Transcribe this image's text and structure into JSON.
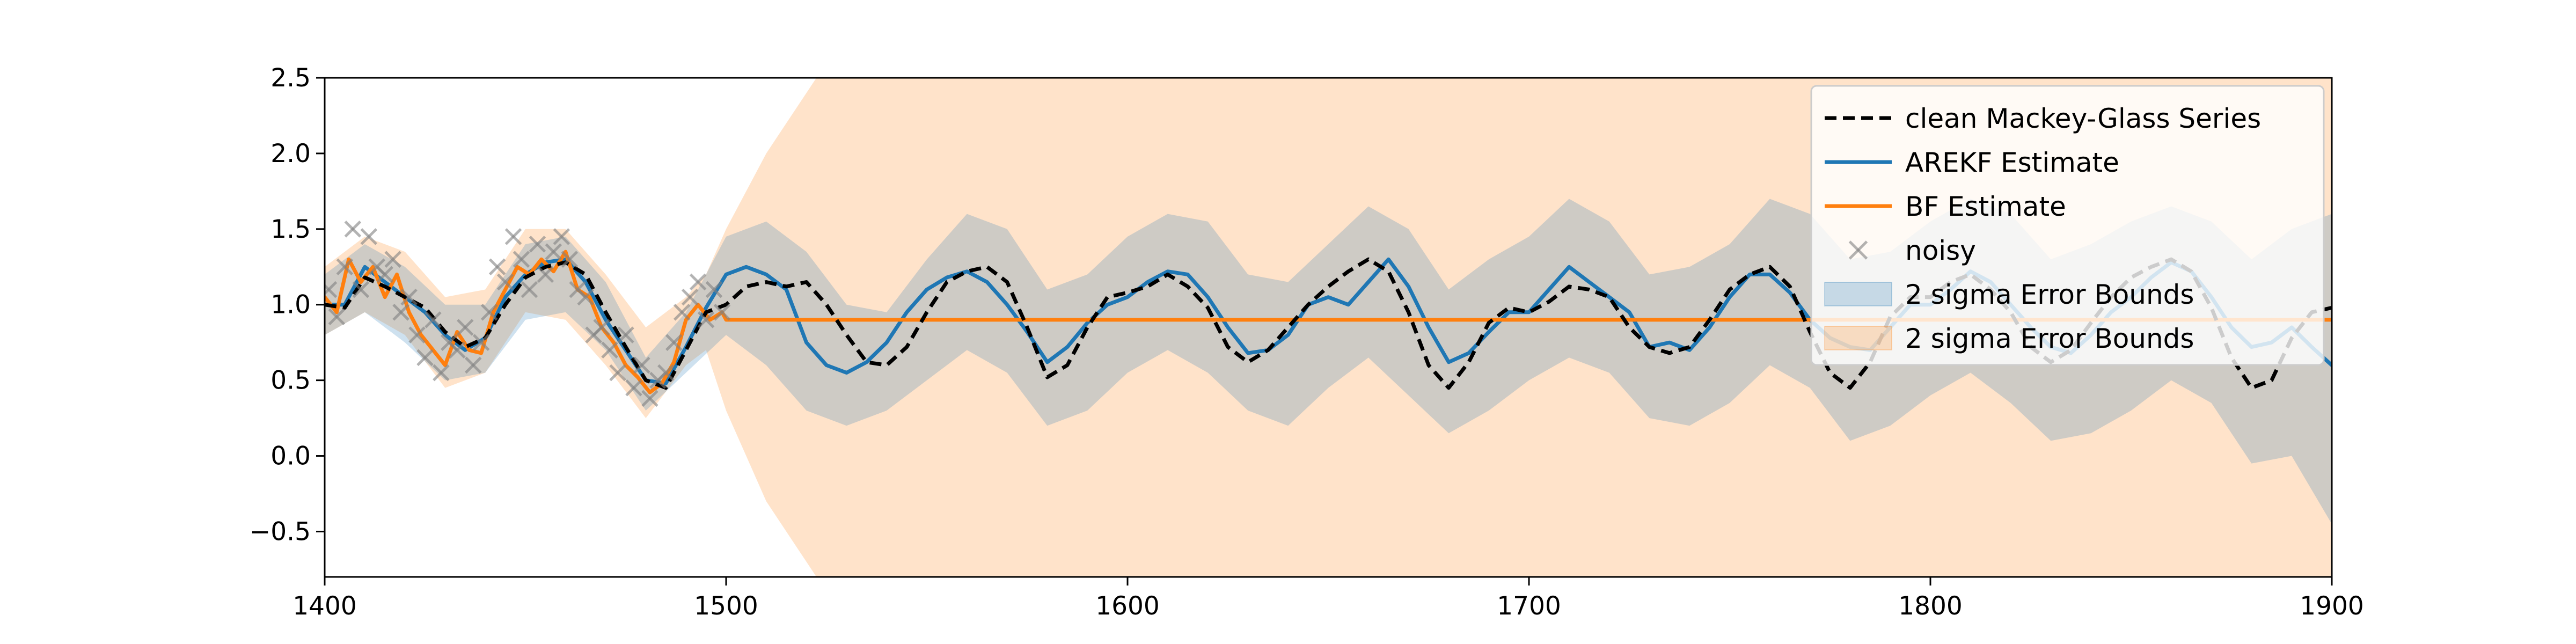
{
  "chart_data": {
    "type": "line",
    "title": "",
    "xlabel": "",
    "ylabel": "",
    "xlim": [
      1400,
      1900
    ],
    "ylim": [
      -0.8,
      2.5
    ],
    "x_ticks": [
      1400,
      1500,
      1600,
      1700,
      1800,
      1900
    ],
    "y_ticks": [
      2.5,
      2.0,
      1.5,
      1.0,
      0.5,
      0.0,
      -0.5
    ],
    "x_tick_labels": [
      "1400",
      "1500",
      "1600",
      "1700",
      "1800",
      "1900"
    ],
    "y_tick_labels": [
      "2.5",
      "2.0",
      "1.5",
      "1.0",
      "0.5",
      "0.0",
      "−0.5"
    ],
    "grid": false,
    "legend_position": "top-right",
    "colors": {
      "clean": "#000000",
      "arekf": "#1f77b4",
      "bf": "#ff7f0e",
      "noisy": "#808080",
      "arekf_band": "#1f77b4",
      "bf_band": "#ff7f0e"
    },
    "legend": [
      {
        "key": "clean",
        "label": "clean Mackey-Glass Series"
      },
      {
        "key": "arekf",
        "label": "AREKF Estimate"
      },
      {
        "key": "bf",
        "label": "BF Estimate"
      },
      {
        "key": "noisy",
        "label": "noisy"
      },
      {
        "key": "arekf_band",
        "label": "2 sigma Error Bounds"
      },
      {
        "key": "bf_band",
        "label": "2 sigma Error Bounds"
      }
    ],
    "series": [
      {
        "key": "clean",
        "style": "dashed",
        "x": [
          1400,
          1405,
          1410,
          1415,
          1420,
          1425,
          1430,
          1435,
          1440,
          1445,
          1450,
          1455,
          1460,
          1465,
          1470,
          1475,
          1480,
          1485,
          1490,
          1495,
          1500,
          1505,
          1510,
          1515,
          1520,
          1525,
          1530,
          1535,
          1540,
          1545,
          1550,
          1555,
          1560,
          1565,
          1570,
          1575,
          1580,
          1585,
          1590,
          1595,
          1600,
          1605,
          1610,
          1615,
          1620,
          1625,
          1630,
          1635,
          1640,
          1645,
          1650,
          1655,
          1660,
          1665,
          1670,
          1675,
          1680,
          1685,
          1690,
          1695,
          1700,
          1705,
          1710,
          1715,
          1720,
          1725,
          1730,
          1735,
          1740,
          1745,
          1750,
          1755,
          1760,
          1765,
          1770,
          1775,
          1780,
          1785,
          1790,
          1795,
          1800,
          1805,
          1810,
          1815,
          1820,
          1825,
          1830,
          1835,
          1840,
          1845,
          1850,
          1855,
          1860,
          1865,
          1870,
          1875,
          1880,
          1885,
          1890,
          1895,
          1900
        ],
        "y": [
          1.0,
          0.98,
          1.18,
          1.12,
          1.05,
          0.98,
          0.82,
          0.72,
          0.78,
          1.0,
          1.18,
          1.25,
          1.28,
          1.2,
          0.95,
          0.72,
          0.5,
          0.45,
          0.7,
          0.95,
          1.0,
          1.12,
          1.15,
          1.12,
          1.15,
          1.0,
          0.8,
          0.62,
          0.6,
          0.72,
          0.95,
          1.15,
          1.22,
          1.25,
          1.15,
          0.85,
          0.52,
          0.6,
          0.85,
          1.05,
          1.08,
          1.12,
          1.2,
          1.12,
          0.98,
          0.72,
          0.62,
          0.7,
          0.85,
          1.0,
          1.12,
          1.22,
          1.3,
          1.22,
          0.95,
          0.6,
          0.45,
          0.62,
          0.88,
          0.98,
          0.95,
          1.02,
          1.12,
          1.1,
          1.05,
          0.85,
          0.72,
          0.68,
          0.72,
          0.9,
          1.1,
          1.2,
          1.25,
          1.12,
          0.82,
          0.55,
          0.45,
          0.62,
          0.92,
          1.05,
          1.05,
          1.15,
          1.2,
          1.1,
          0.95,
          0.72,
          0.62,
          0.7,
          0.88,
          1.05,
          1.18,
          1.25,
          1.3,
          1.22,
          0.98,
          0.65,
          0.45,
          0.5,
          0.78,
          0.95,
          0.98
        ]
      },
      {
        "key": "arekf",
        "style": "solid",
        "x": [
          1400,
          1405,
          1410,
          1415,
          1420,
          1425,
          1430,
          1435,
          1440,
          1445,
          1450,
          1455,
          1460,
          1465,
          1470,
          1475,
          1480,
          1485,
          1490,
          1495,
          1500,
          1505,
          1510,
          1515,
          1520,
          1525,
          1530,
          1535,
          1540,
          1545,
          1550,
          1555,
          1560,
          1565,
          1570,
          1575,
          1580,
          1585,
          1590,
          1595,
          1600,
          1605,
          1610,
          1615,
          1620,
          1625,
          1630,
          1635,
          1640,
          1645,
          1650,
          1655,
          1660,
          1665,
          1670,
          1675,
          1680,
          1685,
          1690,
          1695,
          1700,
          1705,
          1710,
          1715,
          1720,
          1725,
          1730,
          1735,
          1740,
          1745,
          1750,
          1755,
          1760,
          1765,
          1770,
          1775,
          1780,
          1785,
          1790,
          1795,
          1800,
          1805,
          1810,
          1815,
          1820,
          1825,
          1830,
          1835,
          1840,
          1845,
          1850,
          1855,
          1860,
          1865,
          1870,
          1875,
          1880,
          1885,
          1890,
          1895,
          1900
        ],
        "y": [
          1.0,
          1.0,
          1.25,
          1.15,
          1.05,
          0.95,
          0.8,
          0.7,
          0.78,
          1.05,
          1.2,
          1.28,
          1.3,
          1.15,
          0.9,
          0.7,
          0.5,
          0.48,
          0.72,
          0.98,
          1.2,
          1.25,
          1.2,
          1.1,
          0.75,
          0.6,
          0.55,
          0.62,
          0.75,
          0.95,
          1.1,
          1.18,
          1.22,
          1.15,
          1.0,
          0.82,
          0.62,
          0.72,
          0.88,
          1.0,
          1.05,
          1.15,
          1.22,
          1.2,
          1.05,
          0.85,
          0.68,
          0.7,
          0.8,
          1.0,
          1.05,
          1.0,
          1.15,
          1.3,
          1.12,
          0.85,
          0.62,
          0.68,
          0.82,
          0.95,
          0.95,
          1.1,
          1.25,
          1.15,
          1.05,
          0.95,
          0.72,
          0.75,
          0.7,
          0.85,
          1.05,
          1.2,
          1.2,
          1.08,
          0.9,
          0.78,
          0.72,
          0.7,
          0.85,
          1.0,
          1.0,
          1.1,
          1.22,
          1.15,
          1.0,
          0.85,
          0.72,
          0.68,
          0.8,
          0.95,
          1.05,
          1.18,
          1.28,
          1.22,
          1.05,
          0.85,
          0.72,
          0.75,
          0.85,
          0.72,
          0.6
        ]
      },
      {
        "key": "bf",
        "style": "solid",
        "x": [
          1400,
          1403,
          1406,
          1409,
          1412,
          1415,
          1418,
          1421,
          1424,
          1427,
          1430,
          1433,
          1436,
          1439,
          1442,
          1445,
          1448,
          1451,
          1454,
          1457,
          1460,
          1463,
          1466,
          1469,
          1472,
          1475,
          1478,
          1481,
          1484,
          1487,
          1490,
          1493,
          1496,
          1499,
          1500,
          1600,
          1700,
          1800,
          1900
        ],
        "y": [
          1.05,
          0.95,
          1.3,
          1.15,
          1.25,
          1.05,
          1.2,
          0.95,
          0.8,
          0.7,
          0.6,
          0.82,
          0.7,
          0.68,
          0.95,
          1.1,
          1.25,
          1.2,
          1.3,
          1.22,
          1.35,
          1.1,
          1.05,
          0.85,
          0.75,
          0.6,
          0.52,
          0.42,
          0.48,
          0.62,
          0.9,
          1.0,
          0.9,
          0.95,
          0.9,
          0.9,
          0.9,
          0.9,
          0.9
        ]
      }
    ],
    "bands": [
      {
        "key": "arekf_band",
        "x": [
          1400,
          1410,
          1420,
          1430,
          1440,
          1450,
          1460,
          1470,
          1480,
          1490,
          1500,
          1510,
          1520,
          1530,
          1540,
          1550,
          1560,
          1570,
          1580,
          1590,
          1600,
          1610,
          1620,
          1630,
          1640,
          1650,
          1660,
          1670,
          1680,
          1690,
          1700,
          1710,
          1720,
          1730,
          1740,
          1750,
          1760,
          1770,
          1780,
          1790,
          1800,
          1810,
          1820,
          1830,
          1840,
          1850,
          1860,
          1870,
          1880,
          1890,
          1900
        ],
        "upper": [
          1.2,
          1.4,
          1.25,
          1.0,
          1.0,
          1.4,
          1.45,
          1.15,
          0.65,
          0.95,
          1.45,
          1.55,
          1.35,
          1.0,
          0.95,
          1.3,
          1.6,
          1.5,
          1.1,
          1.2,
          1.45,
          1.6,
          1.55,
          1.2,
          1.15,
          1.4,
          1.65,
          1.5,
          1.1,
          1.3,
          1.45,
          1.7,
          1.55,
          1.2,
          1.25,
          1.4,
          1.7,
          1.6,
          1.3,
          1.35,
          1.55,
          1.7,
          1.6,
          1.3,
          1.4,
          1.55,
          1.65,
          1.55,
          1.3,
          1.5,
          1.6
        ],
        "lower": [
          0.8,
          0.95,
          0.75,
          0.5,
          0.55,
          0.9,
          0.95,
          0.7,
          0.3,
          0.55,
          0.8,
          0.6,
          0.3,
          0.2,
          0.3,
          0.5,
          0.7,
          0.55,
          0.2,
          0.3,
          0.55,
          0.7,
          0.55,
          0.3,
          0.2,
          0.45,
          0.65,
          0.4,
          0.15,
          0.3,
          0.5,
          0.65,
          0.55,
          0.25,
          0.2,
          0.35,
          0.6,
          0.45,
          0.1,
          0.2,
          0.4,
          0.55,
          0.35,
          0.1,
          0.15,
          0.3,
          0.5,
          0.35,
          -0.05,
          0.0,
          -0.45
        ]
      },
      {
        "key": "bf_band",
        "x": [
          1400,
          1410,
          1420,
          1430,
          1440,
          1450,
          1460,
          1470,
          1480,
          1490,
          1495,
          1500,
          1505,
          1510,
          1515,
          1520,
          1525,
          1530,
          1900
        ],
        "upper": [
          1.25,
          1.45,
          1.35,
          1.05,
          1.1,
          1.5,
          1.5,
          1.2,
          0.85,
          1.05,
          1.2,
          1.5,
          1.75,
          2.0,
          2.2,
          2.4,
          2.6,
          2.8,
          2.8
        ],
        "lower": [
          0.8,
          0.95,
          0.8,
          0.45,
          0.55,
          0.95,
          0.9,
          0.6,
          0.25,
          0.6,
          0.7,
          0.3,
          0.0,
          -0.3,
          -0.5,
          -0.7,
          -0.9,
          -1.0,
          -1.0
        ]
      }
    ],
    "noisy": {
      "x": [
        1401,
        1403,
        1405,
        1407,
        1409,
        1411,
        1413,
        1415,
        1417,
        1419,
        1421,
        1423,
        1425,
        1427,
        1429,
        1431,
        1433,
        1435,
        1437,
        1439,
        1441,
        1443,
        1445,
        1447,
        1449,
        1451,
        1453,
        1455,
        1457,
        1459,
        1461,
        1463,
        1465,
        1467,
        1469,
        1471,
        1473,
        1475,
        1477,
        1479,
        1481,
        1483,
        1485,
        1487,
        1489,
        1491,
        1493,
        1495,
        1497,
        1499
      ],
      "y": [
        1.1,
        0.92,
        1.25,
        1.5,
        1.1,
        1.45,
        1.25,
        1.2,
        1.3,
        0.95,
        1.05,
        0.8,
        0.65,
        0.9,
        0.55,
        0.75,
        0.7,
        0.85,
        0.6,
        0.75,
        0.95,
        1.25,
        1.15,
        1.45,
        1.3,
        1.1,
        1.4,
        1.2,
        1.35,
        1.45,
        1.3,
        1.1,
        1.05,
        0.8,
        0.85,
        0.7,
        0.55,
        0.8,
        0.45,
        0.6,
        0.38,
        0.5,
        0.55,
        0.75,
        0.95,
        1.05,
        1.15,
        0.9,
        1.1,
        0.95
      ]
    }
  }
}
